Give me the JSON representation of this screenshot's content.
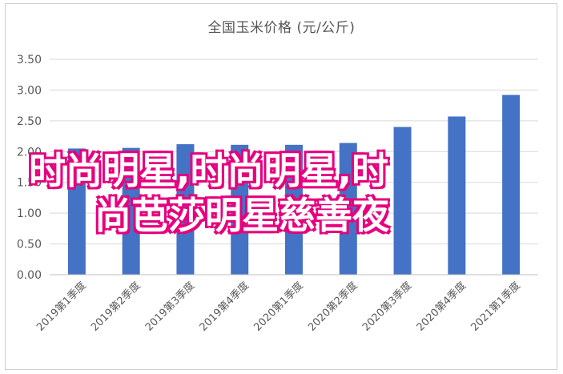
{
  "chart_data": {
    "type": "bar",
    "title": "全国玉米价格 (元/公斤)",
    "categories": [
      "2019第1季度",
      "2019第2季度",
      "2019第3季度",
      "2019第4季度",
      "2020第1季度",
      "2020第2季度",
      "2020第3季度",
      "2020第4季度",
      "2021第1季度"
    ],
    "values": [
      2.05,
      2.06,
      2.12,
      2.11,
      2.11,
      2.14,
      2.4,
      2.57,
      2.92
    ],
    "ylim": [
      0,
      3.5
    ],
    "yticks": [
      "0.00",
      "0.50",
      "1.00",
      "1.50",
      "2.00",
      "2.50",
      "3.00",
      "3.50"
    ],
    "grid": true,
    "bar_color": "#4472c4",
    "grid_color": "#d9d9d9",
    "xlabel": "",
    "ylabel": ""
  },
  "overlay": {
    "line1": "时尚明星,时尚明星,时",
    "line2": "尚芭莎明星慈善夜",
    "fill_color": "#ffffff",
    "outline_color": "#e6007e"
  }
}
